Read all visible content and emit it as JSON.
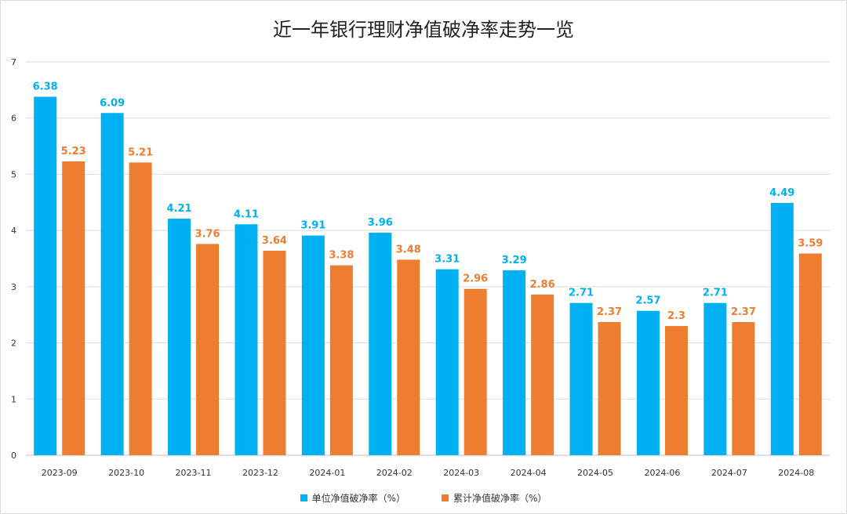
{
  "chart_data": {
    "type": "bar",
    "title": "近一年银行理财净值破净率走势一览",
    "categories": [
      "2023-09",
      "2023-10",
      "2023-11",
      "2023-12",
      "2024-01",
      "2024-02",
      "2024-03",
      "2024-04",
      "2024-05",
      "2024-06",
      "2024-07",
      "2024-08"
    ],
    "series": [
      {
        "name": "单位净值破净率（%）",
        "color": "#00b0f0",
        "values": [
          6.38,
          6.09,
          4.21,
          4.11,
          3.91,
          3.96,
          3.31,
          3.29,
          2.71,
          2.57,
          2.71,
          4.49
        ]
      },
      {
        "name": "累计净值破净率（%）",
        "color": "#ed7d31",
        "values": [
          5.23,
          5.21,
          3.76,
          3.64,
          3.38,
          3.48,
          2.96,
          2.86,
          2.37,
          2.3,
          2.37,
          3.59
        ]
      }
    ],
    "ylim": [
      0,
      7
    ],
    "yticks": [
      "0",
      "1",
      "2",
      "3",
      "4",
      "5",
      "6",
      "7"
    ],
    "grid": true,
    "legend_position": "bottom"
  }
}
